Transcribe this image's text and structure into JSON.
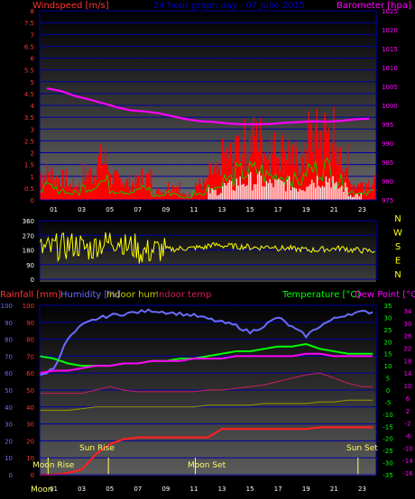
{
  "titles": {
    "wind_axis": "Windspeed [m/s]",
    "main_title": "24 hour graph day : 07 Julio 2015",
    "baro_axis": "Barometer [hpa]",
    "rain_axis": "Rainfall [mm]",
    "humidity_axis": "Humidity [%]",
    "indoor_hum": "Indoor hum",
    "indoor_temp": "Indoor temp",
    "temperature_axis": "Temperature [°C]",
    "dewpoint_axis": "Dew Point [°C]"
  },
  "colors": {
    "wind": "#ff0000",
    "gust": "#00cc00",
    "baro": "#ff00ff",
    "direction": "#ffff00",
    "humidity": "#6b6bff",
    "temperature": "#00ff00",
    "dewpoint": "#ff00ff",
    "rain": "#ff2020",
    "indoor_hum": "#999900",
    "indoor_temp": "#cc2060",
    "grid_blue": "#0000aa",
    "axis_red": "#ff3333",
    "axis_mag": "#ff00ff"
  },
  "x_ticks": [
    "01",
    "03",
    "05",
    "07",
    "09",
    "11",
    "13",
    "15",
    "17",
    "19",
    "21",
    "23"
  ],
  "wind_panel": {
    "y_ticks": [
      "8",
      "7.5",
      "7",
      "6.5",
      "6",
      "5.5",
      "5",
      "4.5",
      "4",
      "3.5",
      "3",
      "2.5",
      "2",
      "1.5",
      "1",
      "0.5",
      "0"
    ],
    "baro_ticks": [
      "1025",
      "1020",
      "1015",
      "1010",
      "1005",
      "1000",
      "995",
      "990",
      "985",
      "980",
      "975"
    ]
  },
  "dir_panel": {
    "y_ticks": [
      "360",
      "270",
      "180",
      "90",
      "0"
    ],
    "compass": [
      "N",
      "W",
      "S",
      "E",
      "N"
    ]
  },
  "bottom_panel": {
    "pct_ticks": [
      "100",
      "90",
      "80",
      "70",
      "60",
      "50",
      "40",
      "30",
      "20",
      "10",
      "0"
    ],
    "rain_ticks": [
      "100",
      "90",
      "80",
      "70",
      "60",
      "50",
      "40",
      "30",
      "20",
      "10",
      "0"
    ],
    "temp_ticks": [
      "35",
      "30",
      "25",
      "20",
      "15",
      "10",
      "5",
      "0",
      "-5",
      "-10",
      "-15",
      "-20",
      "-25",
      "-30",
      "-35"
    ],
    "dew_ticks": [
      "34",
      "30",
      "26",
      "22",
      "18",
      "14",
      "10",
      "6",
      "2",
      "-2",
      "-6",
      "-10",
      "-14",
      "-16"
    ],
    "annotations": {
      "moon_rise": "Moon Rise",
      "sun_rise": "Sun Rise",
      "moon_set": "Moon Set",
      "sun_set": "Sun Set",
      "moon_bottom": "Moon"
    }
  },
  "chart_data": [
    {
      "type": "bar",
      "title": "24 hour graph day : 07 Julio 2015",
      "xlabel": "",
      "ylabel": "Windspeed [m/s]",
      "ylim": [
        0,
        8
      ],
      "y2label": "Barometer [hpa]",
      "y2lim": [
        975,
        1025
      ],
      "grid": true,
      "series": [
        {
          "name": "Windspeed [m/s]",
          "x": [
            0,
            1,
            2,
            3,
            4,
            5,
            6,
            7,
            8,
            9,
            10,
            11,
            12,
            13,
            14,
            15,
            16,
            17,
            18,
            19,
            20,
            21,
            22,
            23
          ],
          "values": [
            1.5,
            1.2,
            0.8,
            1.5,
            2.2,
            1.2,
            1.0,
            1.3,
            0.5,
            0.8,
            0.3,
            0.9,
            1.5,
            2.4,
            3.2,
            3.4,
            2.8,
            2.8,
            2.3,
            3.6,
            3.8,
            2.2,
            0.9,
            1.0
          ]
        },
        {
          "name": "Barometer [hpa]",
          "x": [
            0,
            1,
            2,
            3,
            4,
            5,
            6,
            7,
            8,
            9,
            10,
            11,
            12,
            13,
            14,
            15,
            16,
            17,
            18,
            19,
            20,
            21,
            22,
            23
          ],
          "values": [
            1004.5,
            1003.8,
            1002.5,
            1001.6,
            1000.6,
            999.5,
            998.7,
            998.4,
            997.9,
            997.1,
            996.3,
            995.8,
            995.6,
            995.2,
            995.0,
            995.0,
            995.1,
            995.4,
            995.6,
            995.8,
            995.7,
            995.9,
            996.3,
            996.5
          ]
        }
      ]
    },
    {
      "type": "scatter",
      "title": "",
      "xlabel": "",
      "ylabel": "",
      "ylim": [
        0,
        360
      ],
      "grid": true,
      "series": [
        {
          "name": "",
          "x": [
            0,
            1,
            2,
            3,
            4,
            5,
            6,
            7,
            8,
            9,
            10,
            11,
            12,
            13,
            14,
            15,
            16,
            17,
            18,
            19,
            20,
            21,
            22,
            23
          ],
          "values": [
            185,
            200,
            210,
            190,
            220,
            240,
            200,
            170,
            180,
            185,
            190,
            195,
            210,
            205,
            200,
            195,
            200,
            190,
            185,
            180,
            185,
            190,
            180,
            175
          ]
        }
      ]
    },
    {
      "type": "line",
      "title": "",
      "xlabel": "",
      "ylabel": "Humidity [%]",
      "ylim": [
        0,
        100
      ],
      "y2label": "Temperature [°C]",
      "y2lim": [
        -35,
        35
      ],
      "grid": true,
      "series": [
        {
          "name": "Humidity [%]",
          "x": [
            0,
            1,
            2,
            3,
            4,
            5,
            6,
            7,
            8,
            9,
            10,
            11,
            12,
            13,
            14,
            15,
            16,
            17,
            18,
            19,
            20,
            21,
            22,
            23
          ],
          "values": [
            58,
            63,
            80,
            88,
            92,
            94,
            95,
            96,
            97,
            96,
            95,
            94,
            92,
            90,
            88,
            84,
            88,
            93,
            87,
            82,
            88,
            92,
            95,
            96
          ]
        },
        {
          "name": "Temperature [°C]",
          "x": [
            0,
            1,
            2,
            3,
            4,
            5,
            6,
            7,
            8,
            9,
            10,
            11,
            12,
            13,
            14,
            15,
            16,
            17,
            18,
            19,
            20,
            21,
            22,
            23
          ],
          "values": [
            14,
            13,
            11,
            10,
            10,
            10,
            11,
            11,
            12,
            12,
            13,
            13,
            14,
            15,
            16,
            16,
            17,
            18,
            18,
            19,
            17,
            16,
            15,
            15
          ]
        },
        {
          "name": "Dew Point [°C]",
          "x": [
            0,
            1,
            2,
            3,
            4,
            5,
            6,
            7,
            8,
            9,
            10,
            11,
            12,
            13,
            14,
            15,
            16,
            17,
            18,
            19,
            20,
            21,
            22,
            23
          ],
          "values": [
            7,
            8,
            8,
            9,
            10,
            10,
            11,
            11,
            12,
            12,
            12,
            13,
            13,
            13,
            14,
            14,
            14,
            14,
            14,
            15,
            15,
            14,
            14,
            14
          ]
        },
        {
          "name": "Indoor hum",
          "x": [
            0,
            1,
            2,
            3,
            4,
            5,
            6,
            7,
            8,
            9,
            10,
            11,
            12,
            13,
            14,
            15,
            16,
            17,
            18,
            19,
            20,
            21,
            22,
            23
          ],
          "values": [
            38,
            38,
            38,
            39,
            40,
            40,
            40,
            40,
            40,
            40,
            40,
            40,
            41,
            41,
            41,
            41,
            42,
            42,
            42,
            42,
            43,
            43,
            44,
            44
          ]
        },
        {
          "name": "Indoor temp",
          "x": [
            0,
            1,
            2,
            3,
            4,
            5,
            6,
            7,
            8,
            9,
            10,
            11,
            12,
            13,
            14,
            15,
            16,
            17,
            18,
            19,
            20,
            21,
            22,
            23
          ],
          "values": [
            48,
            48,
            48,
            48,
            50,
            52,
            50,
            49,
            49,
            49,
            49,
            49,
            50,
            50,
            51,
            52,
            53,
            55,
            57,
            59,
            60,
            57,
            54,
            52
          ]
        },
        {
          "name": "Rainfall [mm]",
          "x": [
            0,
            1,
            2,
            3,
            4,
            5,
            6,
            7,
            8,
            9,
            10,
            11,
            12,
            13,
            14,
            15,
            16,
            17,
            18,
            19,
            20,
            21,
            22,
            23
          ],
          "values": [
            0,
            0,
            1,
            3,
            12,
            18,
            21,
            22,
            22,
            22,
            22,
            22,
            22,
            27,
            27,
            27,
            27,
            27,
            27,
            27,
            28,
            28,
            28,
            28
          ]
        }
      ]
    }
  ]
}
